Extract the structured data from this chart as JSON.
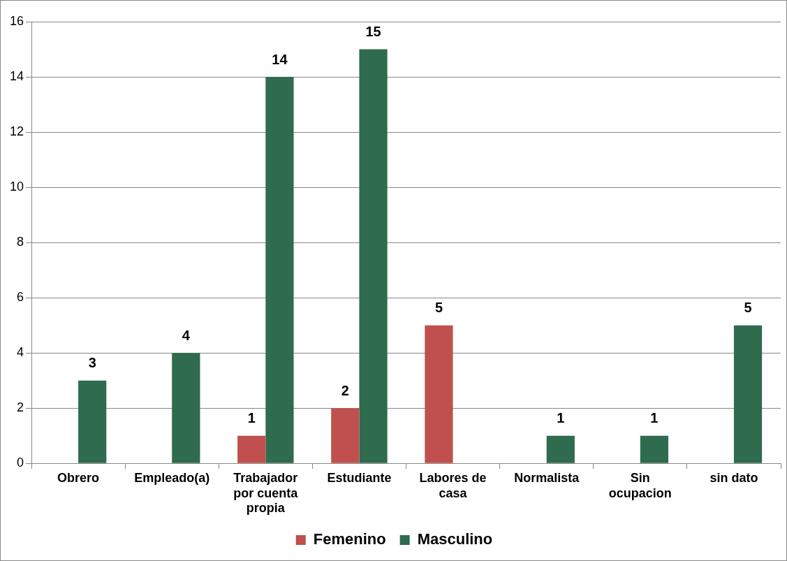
{
  "chart_data": {
    "type": "bar",
    "categories": [
      "Obrero",
      "Empleado(a)",
      "Trabajador por cuenta propia",
      "Estudiante",
      "Labores de casa",
      "Normalista",
      "Sin ocupacion",
      "sin dato"
    ],
    "series": [
      {
        "name": "Femenino",
        "color": "#c0504d",
        "values": [
          null,
          null,
          1,
          2,
          5,
          null,
          null,
          null
        ]
      },
      {
        "name": "Masculino",
        "color": "#2f6b4f",
        "values": [
          3,
          4,
          14,
          15,
          null,
          1,
          1,
          5
        ]
      }
    ],
    "ylim": [
      0,
      16
    ],
    "yticks": [
      0,
      2,
      4,
      6,
      8,
      10,
      12,
      14,
      16
    ],
    "grid": "y",
    "legend": "bottom",
    "data_labels": true
  }
}
